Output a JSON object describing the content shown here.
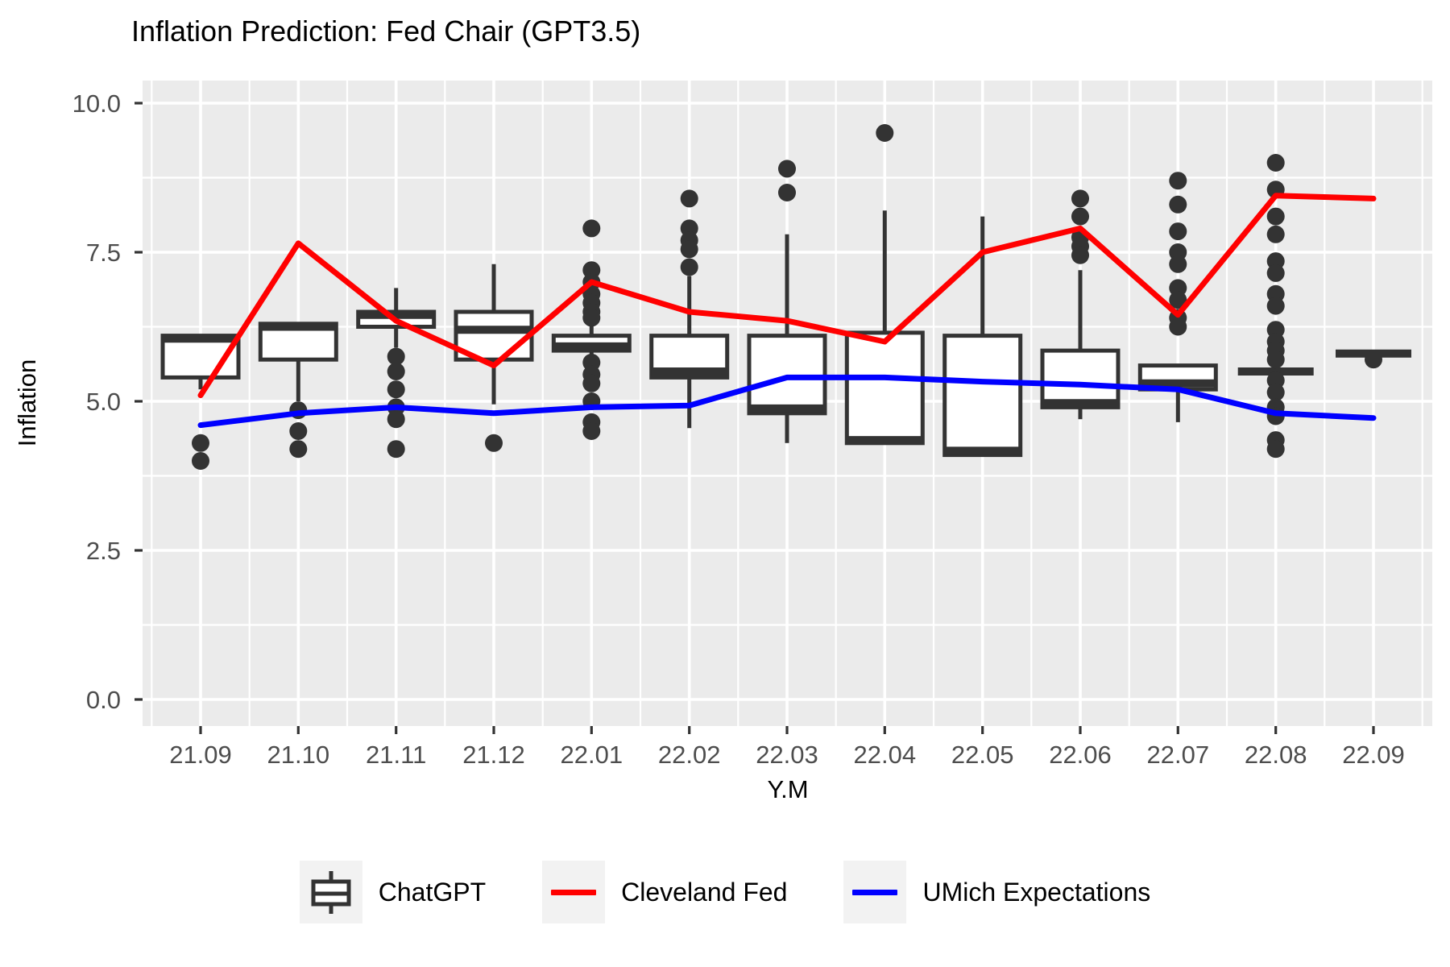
{
  "title": "Inflation Prediction: Fed Chair (GPT3.5)",
  "x_axis": {
    "label": "Y.M"
  },
  "y_axis": {
    "label": "Inflation",
    "tick_labels": [
      "0.0",
      "2.5",
      "5.0",
      "7.5",
      "10.0"
    ],
    "tick_values": [
      0,
      2.5,
      5,
      7.5,
      10
    ]
  },
  "legend": {
    "items": [
      {
        "label": "ChatGPT",
        "type": "boxplot",
        "color": "#333333"
      },
      {
        "label": "Cleveland Fed",
        "type": "line",
        "color": "#FF0000"
      },
      {
        "label": "UMich Expectations",
        "type": "line",
        "color": "#0000FF"
      }
    ]
  },
  "colors": {
    "panel_bg": "#EBEBEB",
    "grid": "#FFFFFF",
    "box_stroke": "#333333",
    "box_fill": "#FFFFFF",
    "outlier": "#333333",
    "tick_text": "#4D4D4D",
    "red_line": "#FF0000",
    "blue_line": "#0000FF"
  },
  "chart_data": {
    "type": "boxplot+line",
    "title": "Inflation Prediction: Fed Chair (GPT3.5)",
    "xlabel": "Y.M",
    "ylabel": "Inflation",
    "ylim": [
      0,
      10
    ],
    "y_major_ticks": [
      0,
      2.5,
      5,
      7.5,
      10
    ],
    "y_minor_ticks": [
      1.25,
      3.75,
      6.25,
      8.75
    ],
    "grid": true,
    "legend_position": "bottom",
    "categories": [
      "21.09",
      "21.10",
      "21.11",
      "21.12",
      "22.01",
      "22.02",
      "22.03",
      "22.04",
      "22.05",
      "22.06",
      "22.07",
      "22.08",
      "22.09"
    ],
    "boxplots": [
      {
        "category": "21.09",
        "whisker_low": 5.2,
        "q1": 5.4,
        "median": 6.05,
        "q3": 6.1,
        "whisker_high": null,
        "outliers": [
          4.3,
          4.0
        ]
      },
      {
        "category": "21.10",
        "whisker_low": 5.0,
        "q1": 5.7,
        "median": 6.25,
        "q3": 6.3,
        "whisker_high": null,
        "outliers": [
          4.85,
          4.5,
          4.2
        ]
      },
      {
        "category": "21.11",
        "whisker_low": 5.9,
        "q1": 6.25,
        "median": 6.45,
        "q3": 6.5,
        "whisker_high": 6.9,
        "outliers": [
          5.75,
          5.5,
          5.2,
          4.9,
          4.7,
          4.2
        ]
      },
      {
        "category": "21.12",
        "whisker_low": 4.95,
        "q1": 5.7,
        "median": 6.2,
        "q3": 6.5,
        "whisker_high": 7.3,
        "outliers": [
          4.3
        ]
      },
      {
        "category": "22.01",
        "whisker_low": 5.7,
        "q1": 5.85,
        "median": 5.92,
        "q3": 6.1,
        "whisker_high": 6.3,
        "outliers": [
          7.9,
          7.2,
          7.0,
          6.8,
          6.65,
          6.5,
          6.4,
          5.65,
          5.45,
          5.3,
          5.0,
          4.65,
          4.5
        ]
      },
      {
        "category": "22.02",
        "whisker_low": 4.55,
        "q1": 5.4,
        "median": 5.5,
        "q3": 6.1,
        "whisker_high": 7.1,
        "outliers": [
          8.4,
          7.9,
          7.7,
          7.55,
          7.25
        ]
      },
      {
        "category": "22.03",
        "whisker_low": 4.3,
        "q1": 4.8,
        "median": 4.88,
        "q3": 6.1,
        "whisker_high": 7.8,
        "outliers": [
          8.9,
          8.5
        ]
      },
      {
        "category": "22.04",
        "whisker_low": null,
        "q1": 4.3,
        "median": 4.35,
        "q3": 6.15,
        "whisker_high": 8.2,
        "outliers": [
          9.5
        ]
      },
      {
        "category": "22.05",
        "whisker_low": null,
        "q1": 4.1,
        "median": 4.17,
        "q3": 6.1,
        "whisker_high": 8.1,
        "outliers": []
      },
      {
        "category": "22.06",
        "whisker_low": 4.7,
        "q1": 4.9,
        "median": 4.97,
        "q3": 5.85,
        "whisker_high": 7.2,
        "outliers": [
          8.4,
          8.1,
          7.75,
          7.6,
          7.45
        ]
      },
      {
        "category": "22.07",
        "whisker_low": 4.65,
        "q1": 5.2,
        "median": 5.3,
        "q3": 5.6,
        "whisker_high": null,
        "outliers": [
          8.7,
          8.3,
          7.85,
          7.5,
          7.3,
          6.9,
          6.7,
          6.4,
          6.25
        ]
      },
      {
        "category": "22.08",
        "whisker_low": 5.0,
        "q1": 5.5,
        "median": 5.5,
        "q3": 5.5,
        "whisker_high": 5.7,
        "outliers": [
          9.0,
          8.55,
          8.1,
          7.8,
          7.35,
          7.15,
          6.8,
          6.6,
          6.2,
          6.0,
          5.85,
          5.7,
          5.35,
          5.15,
          4.9,
          4.75,
          4.35,
          4.2
        ]
      },
      {
        "category": "22.09",
        "whisker_low": null,
        "q1": 5.8,
        "median": 5.8,
        "q3": 5.8,
        "whisker_high": null,
        "outliers": [
          5.7
        ]
      }
    ],
    "series": [
      {
        "name": "Cleveland Fed",
        "color": "#FF0000",
        "values": [
          5.1,
          7.65,
          6.35,
          5.6,
          7.0,
          6.5,
          6.35,
          6.0,
          7.5,
          7.9,
          6.45,
          8.45,
          8.4
        ]
      },
      {
        "name": "UMich Expectations",
        "color": "#0000FF",
        "values": [
          4.6,
          4.8,
          4.9,
          4.8,
          4.9,
          4.93,
          5.4,
          5.4,
          5.33,
          5.28,
          5.2,
          4.8,
          4.72
        ]
      }
    ]
  }
}
